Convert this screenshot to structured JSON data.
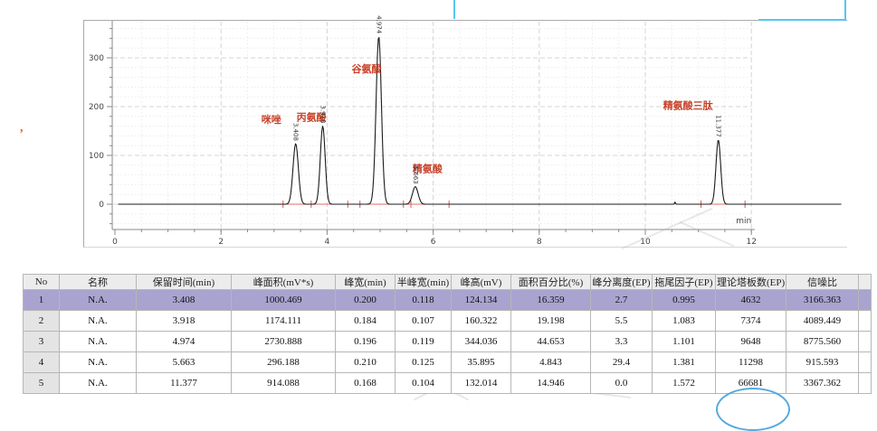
{
  "stray_text": ",",
  "chart_data": {
    "type": "line",
    "title": "",
    "xlabel": "min",
    "ylabel": "",
    "axis_unit_label": "min",
    "x_ticks": [
      0,
      2,
      4,
      6,
      8,
      10,
      12
    ],
    "y_ticks": [
      0,
      100,
      200,
      300
    ],
    "x_range_min": [
      0,
      13.7
    ],
    "y_range_mv": [
      -52,
      376
    ],
    "x_minor_step_min": 0.5,
    "y_minor_step_mv": 20,
    "grid": true,
    "legend": false,
    "trace_color": "#1b1b1b",
    "peak_label_color": "#c8432b",
    "peaks": [
      {
        "label": "咪唑",
        "rt_min": 3.408,
        "height_mv": 124.134,
        "half_width_min": 0.118
      },
      {
        "label": "丙氨酸",
        "rt_min": 3.918,
        "height_mv": 160.322,
        "half_width_min": 0.107
      },
      {
        "label": "谷氨酸",
        "rt_min": 4.974,
        "height_mv": 344.036,
        "half_width_min": 0.119
      },
      {
        "label": "精氨酸",
        "rt_min": 5.663,
        "height_mv": 35.895,
        "half_width_min": 0.125
      },
      {
        "label": "精氨酸三肽",
        "rt_min": 11.377,
        "height_mv": 132.014,
        "half_width_min": 0.104
      }
    ],
    "minor_blip": {
      "rt_min": 10.56,
      "height_mv": 4.5,
      "half_width_min": 0.02
    },
    "integration": {
      "color": "#dd5555",
      "baseline_color": "#e46a6a",
      "baseline_segments_min": [
        [
          3.17,
          6.3
        ],
        [
          11.05,
          11.88
        ]
      ],
      "event_ticks_min": [
        3.17,
        3.7,
        4.39,
        4.62,
        5.44,
        5.58,
        6.3,
        11.05,
        11.88
      ]
    }
  },
  "table": {
    "columns": [
      "No",
      "名称",
      "保留时间(min)",
      "峰面积(mV*s)",
      "峰宽(min)",
      "半峰宽(min)",
      "峰高(mV)",
      "面积百分比(%)",
      "峰分离度(EP)",
      "拖尾因子(EP)",
      "理论塔板数(EP)",
      "信噪比"
    ],
    "rows": [
      [
        "1",
        "N.A.",
        "3.408",
        "1000.469",
        "0.200",
        "0.118",
        "124.134",
        "16.359",
        "2.7",
        "0.995",
        "4632",
        "3166.363"
      ],
      [
        "2",
        "N.A.",
        "3.918",
        "1174.111",
        "0.184",
        "0.107",
        "160.322",
        "19.198",
        "5.5",
        "1.083",
        "7374",
        "4089.449"
      ],
      [
        "3",
        "N.A.",
        "4.974",
        "2730.888",
        "0.196",
        "0.119",
        "344.036",
        "44.653",
        "3.3",
        "1.101",
        "9648",
        "8775.560"
      ],
      [
        "4",
        "N.A.",
        "5.663",
        "296.188",
        "0.210",
        "0.125",
        "35.895",
        "4.843",
        "29.4",
        "1.381",
        "11298",
        "915.593"
      ],
      [
        "5",
        "N.A.",
        "11.377",
        "914.088",
        "0.168",
        "0.104",
        "132.014",
        "14.946",
        "0.0",
        "1.572",
        "66681",
        "3367.362"
      ]
    ],
    "selected_row_index": 0,
    "selected_row_color": "#a9a3d0",
    "header_bg": "#ececec"
  }
}
